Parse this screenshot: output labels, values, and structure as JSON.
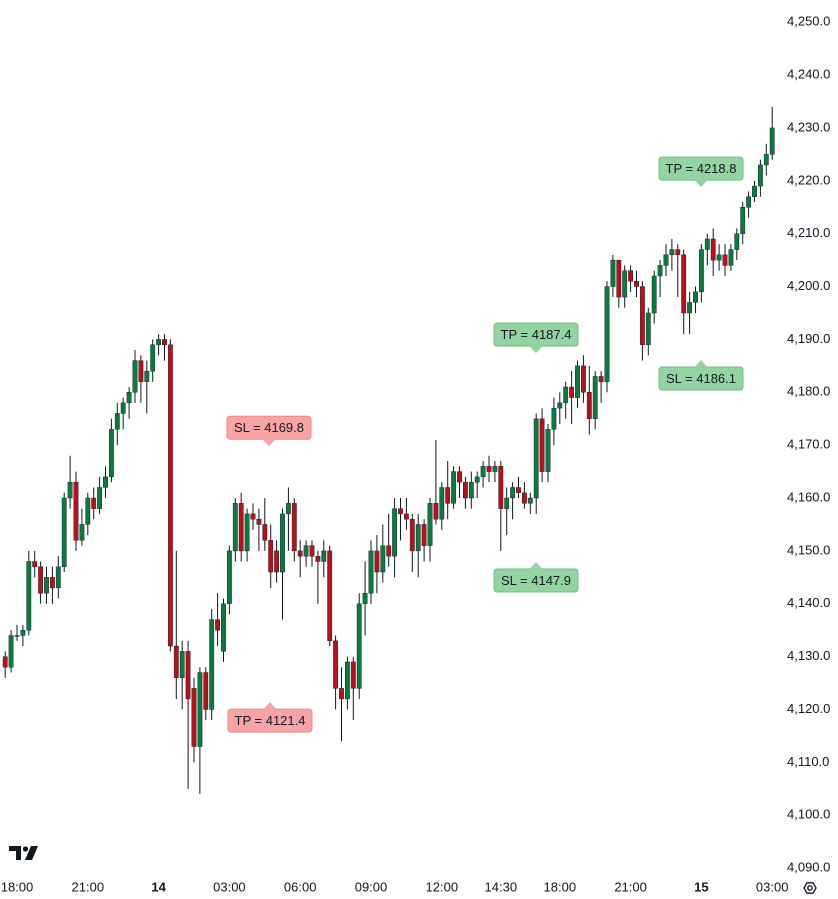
{
  "chart_data": {
    "type": "candlestick",
    "categories": [
      null,
      null,
      "18:00",
      null,
      null,
      null,
      null,
      null,
      null,
      null,
      null,
      null,
      null,
      null,
      "21:00",
      null,
      null,
      null,
      null,
      null,
      null,
      null,
      null,
      null,
      null,
      null,
      "14",
      null,
      null,
      null,
      null,
      null,
      null,
      null,
      null,
      null,
      null,
      null,
      "03:00",
      null,
      null,
      null,
      null,
      null,
      null,
      null,
      null,
      null,
      null,
      null,
      "06:00",
      null,
      null,
      null,
      null,
      null,
      null,
      null,
      null,
      null,
      null,
      null,
      "09:00",
      null,
      null,
      null,
      null,
      null,
      null,
      null,
      null,
      null,
      null,
      null,
      "12:00",
      null,
      null,
      null,
      null,
      null,
      null,
      null,
      null,
      null,
      "14:30",
      null,
      null,
      null,
      null,
      null,
      null,
      null,
      null,
      null,
      "18:00",
      null,
      null,
      null,
      null,
      null,
      null,
      null,
      null,
      null,
      null,
      null,
      "21:00",
      null,
      null,
      null,
      null,
      null,
      null,
      null,
      null,
      null,
      null,
      null,
      "15",
      null,
      null,
      null,
      null,
      null,
      null,
      null,
      null,
      null,
      null,
      null,
      "03:00"
    ],
    "open": [
      4130,
      4128,
      4134,
      4134,
      4135,
      4148,
      4147,
      4142,
      4145,
      4143,
      4147,
      4160,
      4163,
      4152,
      4155,
      4160,
      4158,
      4162,
      4164,
      4173,
      4176,
      4178,
      4180,
      4186,
      4182,
      4184,
      4189,
      4190,
      4189,
      4132,
      4126,
      4131,
      4124,
      4113,
      4127,
      4120,
      4137,
      4131,
      4140,
      4150,
      4159,
      4150,
      4157,
      4156,
      4155,
      4152,
      4150,
      4146,
      4157,
      4159,
      4150,
      4149,
      4151,
      4149,
      4148,
      4150,
      4133,
      4124,
      4122,
      4129,
      4124,
      4140,
      4142,
      4150,
      4146,
      4151,
      4149,
      4158,
      4157,
      4156,
      4150,
      4155,
      4151,
      4159,
      4156,
      4162,
      4159,
      4165,
      4163,
      4160,
      4163,
      4164,
      4166,
      4165,
      4166,
      4158,
      4160,
      4162,
      4161,
      4159,
      4160,
      4175,
      4165,
      4173,
      4177,
      4178,
      4181,
      4179,
      4185,
      4180,
      4175,
      4183,
      4182,
      4200,
      4205,
      4198,
      4203,
      4201,
      4200,
      4189,
      4195,
      4202,
      4204,
      4206,
      4207,
      4206,
      4195,
      4197,
      4199,
      4207,
      4209,
      4205,
      4206,
      4204,
      4207,
      4210,
      4215,
      4217,
      4219,
      4223,
      4225
    ],
    "high": [
      4131,
      4135,
      4136,
      4136,
      4150,
      4150,
      4148,
      4147,
      4147,
      4149,
      4161,
      4168,
      4165,
      4158,
      4161,
      4162,
      4164,
      4166,
      4175,
      4178,
      4179,
      4181,
      4188,
      4187,
      4186,
      4190,
      4191,
      4191,
      4190,
      4150,
      4133,
      4133,
      4126,
      4128,
      4128,
      4139,
      4142,
      4141,
      4151,
      4160,
      4161,
      4158,
      4159,
      4158,
      4160,
      4155,
      4152,
      4158,
      4162,
      4160,
      4152,
      4152,
      4152,
      4150,
      4152,
      4151,
      4134,
      4128,
      4130,
      4130,
      4142,
      4148,
      4152,
      4153,
      4155,
      4157,
      4160,
      4160,
      4160,
      4157,
      4157,
      4156,
      4160,
      4171,
      4163,
      4167,
      4166,
      4166,
      4164,
      4165,
      4165,
      4167,
      4168,
      4167,
      4167,
      4162,
      4163,
      4164,
      4163,
      4161,
      4176,
      4177,
      4174,
      4179,
      4180,
      4182,
      4184,
      4186,
      4187,
      4185,
      4184,
      4184,
      4201,
      4206,
      4205,
      4204,
      4204,
      4203,
      4201,
      4196,
      4203,
      4205,
      4208,
      4209,
      4208,
      4207,
      4199,
      4200,
      4208,
      4210,
      4211,
      4208,
      4208,
      4208,
      4211,
      4216,
      4218,
      4220,
      4224,
      4227,
      4234
    ],
    "low": [
      4126,
      4127,
      4133,
      4132,
      4134,
      4145,
      4140,
      4140,
      4140,
      4141,
      4146,
      4158,
      4150,
      4151,
      4153,
      4156,
      4157,
      4160,
      4163,
      4170,
      4173,
      4175,
      4178,
      4178,
      4176,
      4182,
      4187,
      4186,
      4131,
      4122,
      4120,
      4105,
      4110,
      4104,
      4118,
      4118,
      4132,
      4129,
      4138,
      4148,
      4148,
      4148,
      4154,
      4150,
      4150,
      4143,
      4144,
      4137,
      4150,
      4148,
      4145,
      4147,
      4147,
      4140,
      4145,
      4132,
      4120,
      4114,
      4120,
      4118,
      4122,
      4134,
      4140,
      4142,
      4144,
      4147,
      4145,
      4152,
      4154,
      4146,
      4145,
      4148,
      4148,
      4155,
      4154,
      4156,
      4158,
      4160,
      4158,
      4158,
      4160,
      4162,
      4163,
      4163,
      4150,
      4153,
      4156,
      4160,
      4158,
      4157,
      4157,
      4163,
      4163,
      4170,
      4174,
      4175,
      4174,
      4177,
      4178,
      4172,
      4173,
      4178,
      4180,
      4198,
      4196,
      4196,
      4199,
      4198,
      4186,
      4187,
      4193,
      4198,
      4202,
      4203,
      4198,
      4191,
      4191,
      4195,
      4197,
      4204,
      4202,
      4203,
      4202,
      4203,
      4205,
      4208,
      4213,
      4216,
      4217,
      4221,
      4224
    ],
    "close": [
      4128,
      4134,
      4134,
      4135,
      4148,
      4147,
      4142,
      4145,
      4143,
      4147,
      4160,
      4163,
      4152,
      4155,
      4160,
      4158,
      4162,
      4164,
      4173,
      4176,
      4178,
      4180,
      4186,
      4182,
      4184,
      4189,
      4190,
      4189,
      4132,
      4126,
      4131,
      4122,
      4113,
      4127,
      4120,
      4137,
      4135,
      4140,
      4150,
      4159,
      4150,
      4157,
      4156,
      4155,
      4152,
      4146,
      4146,
      4157,
      4159,
      4150,
      4149,
      4151,
      4149,
      4148,
      4150,
      4133,
      4124,
      4122,
      4129,
      4124,
      4140,
      4142,
      4150,
      4146,
      4151,
      4149,
      4158,
      4157,
      4156,
      4150,
      4155,
      4151,
      4159,
      4156,
      4162,
      4159,
      4165,
      4163,
      4160,
      4163,
      4164,
      4166,
      4165,
      4166,
      4158,
      4160,
      4162,
      4161,
      4159,
      4160,
      4175,
      4165,
      4173,
      4177,
      4178,
      4181,
      4179,
      4185,
      4180,
      4175,
      4183,
      4182,
      4200,
      4205,
      4198,
      4203,
      4201,
      4200,
      4189,
      4195,
      4202,
      4204,
      4206,
      4207,
      4206,
      4195,
      4197,
      4199,
      4207,
      4209,
      4205,
      4206,
      4204,
      4207,
      4210,
      4215,
      4217,
      4219,
      4223,
      4225,
      4230
    ],
    "up_color": "#0b7a3e",
    "down_color": "#b8111d",
    "ylim": [
      4088.7,
      4254.2
    ],
    "yticks": [
      {
        "value": 4090,
        "label": "4,090.0"
      },
      {
        "value": 4100,
        "label": "4,100.0"
      },
      {
        "value": 4110,
        "label": "4,110.0"
      },
      {
        "value": 4120,
        "label": "4,120.0"
      },
      {
        "value": 4130,
        "label": "4,130.0"
      },
      {
        "value": 4140,
        "label": "4,140.0"
      },
      {
        "value": 4150,
        "label": "4,150.0"
      },
      {
        "value": 4160,
        "label": "4,160.0"
      },
      {
        "value": 4170,
        "label": "4,170.0"
      },
      {
        "value": 4180,
        "label": "4,180.0"
      },
      {
        "value": 4190,
        "label": "4,190.0"
      },
      {
        "value": 4200,
        "label": "4,200.0"
      },
      {
        "value": 4210,
        "label": "4,210.0"
      },
      {
        "value": 4220,
        "label": "4,220.0"
      },
      {
        "value": 4230,
        "label": "4,230.0"
      },
      {
        "value": 4240,
        "label": "4,240.0"
      },
      {
        "value": 4250,
        "label": "4,250.0"
      }
    ],
    "grid": false,
    "annotations": [
      {
        "label": "SL = 4169.8",
        "value": 4169.8,
        "kind": "loss"
      },
      {
        "label": "TP = 4121.4",
        "value": 4121.4,
        "kind": "loss"
      },
      {
        "label": "TP = 4187.4",
        "value": 4187.4,
        "kind": "profit"
      },
      {
        "label": "SL = 4147.9",
        "value": 4147.9,
        "kind": "profit"
      },
      {
        "label": "TP = 4218.8",
        "value": 4218.8,
        "kind": "profit"
      },
      {
        "label": "SL = 4186.1",
        "value": 4186.1,
        "kind": "profit"
      }
    ]
  }
}
